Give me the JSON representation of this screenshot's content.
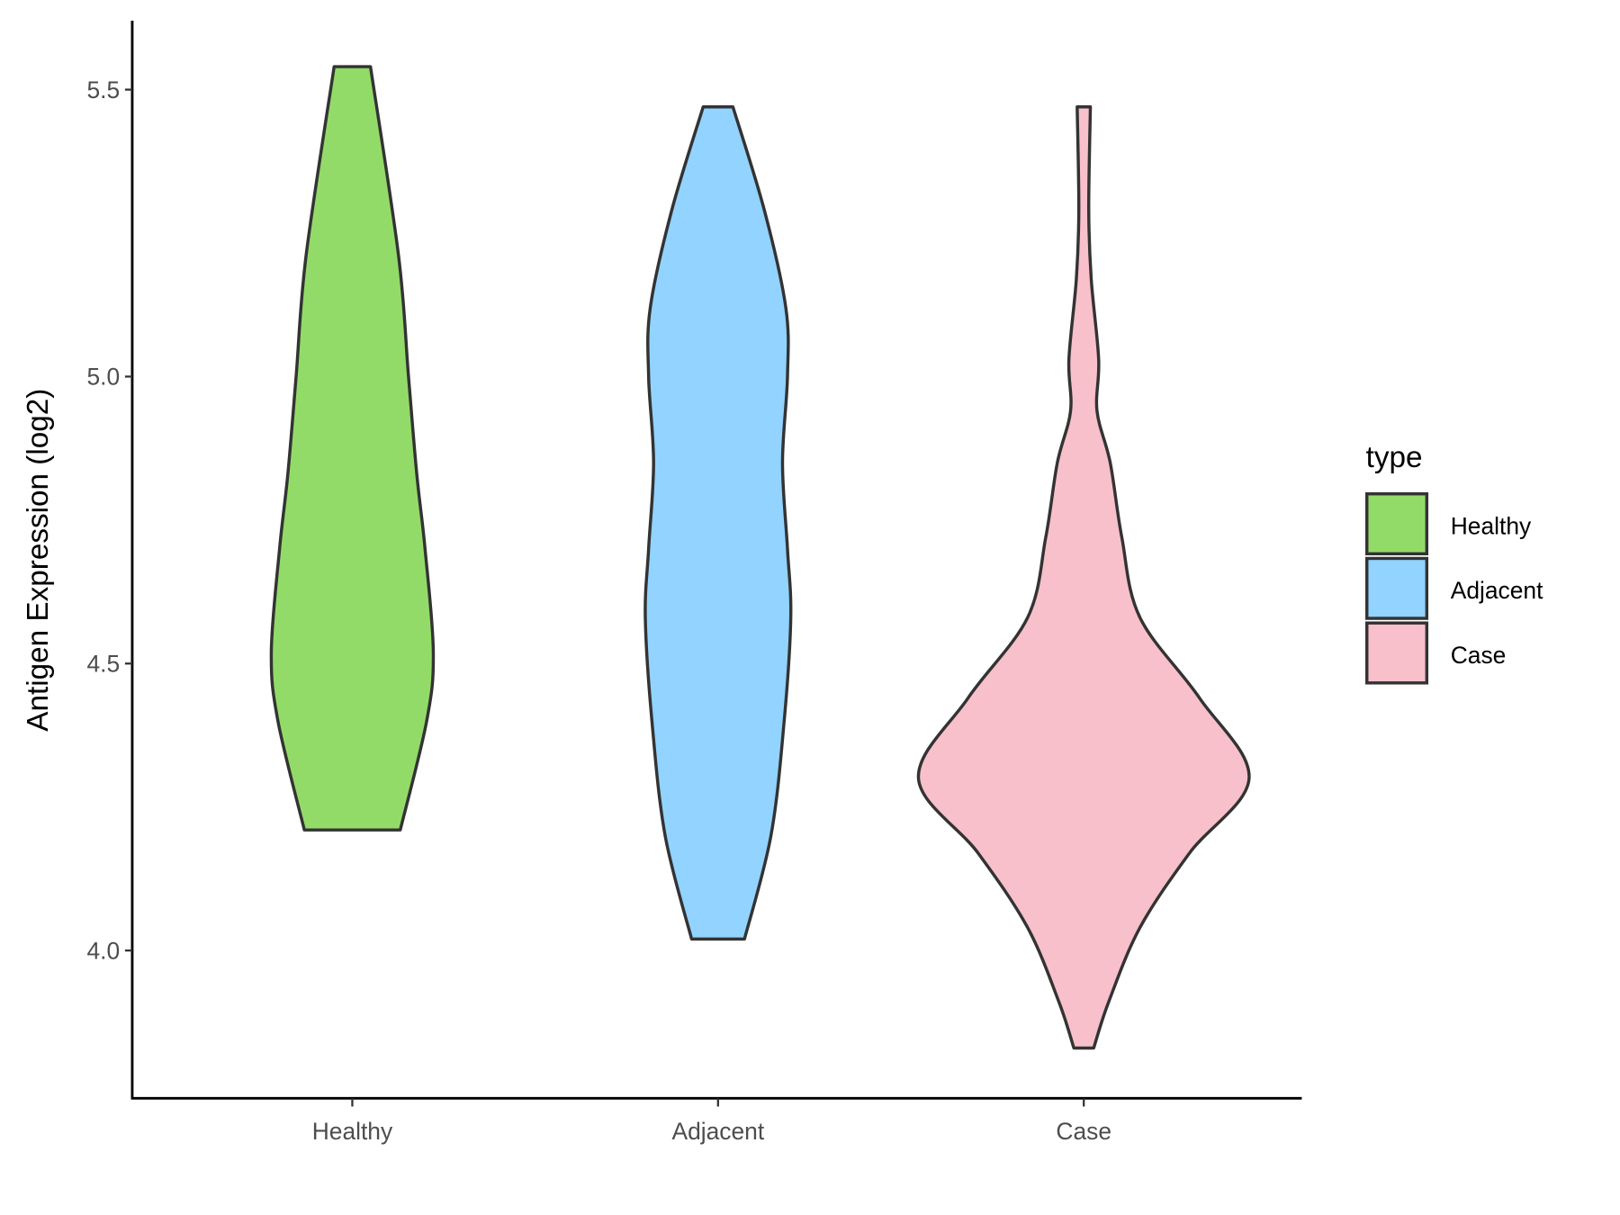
{
  "chart_data": {
    "type": "violin",
    "title": "",
    "xlabel": "",
    "ylabel": "Antigen Expression (log2)",
    "ylim": [
      3.74,
      5.62
    ],
    "yticks": [
      4.0,
      4.5,
      5.0,
      5.5
    ],
    "ytick_labels": [
      "4.0",
      "4.5",
      "5.0",
      "5.5"
    ],
    "categories": [
      "Healthy",
      "Adjacent",
      "Case"
    ],
    "grid": false,
    "legend": {
      "title": "type",
      "position": "right",
      "entries": [
        "Healthy",
        "Adjacent",
        "Case"
      ]
    },
    "series": [
      {
        "name": "Healthy",
        "color": "#93DB69",
        "profile": [
          [
            5.54,
            0.11
          ],
          [
            5.21,
            0.28
          ],
          [
            5.0,
            0.34
          ],
          [
            4.83,
            0.39
          ],
          [
            4.7,
            0.44
          ],
          [
            4.52,
            0.49
          ],
          [
            4.4,
            0.45
          ],
          [
            4.21,
            0.29
          ]
        ]
      },
      {
        "name": "Adjacent",
        "color": "#92D3FF",
        "profile": [
          [
            5.47,
            0.09
          ],
          [
            5.29,
            0.28
          ],
          [
            5.12,
            0.41
          ],
          [
            5.0,
            0.42
          ],
          [
            4.85,
            0.39
          ],
          [
            4.7,
            0.42
          ],
          [
            4.58,
            0.44
          ],
          [
            4.4,
            0.4
          ],
          [
            4.2,
            0.32
          ],
          [
            4.02,
            0.16
          ]
        ]
      },
      {
        "name": "Case",
        "color": "#F7C0CB",
        "profile": [
          [
            5.47,
            0.04
          ],
          [
            5.29,
            0.03
          ],
          [
            5.17,
            0.045
          ],
          [
            5.03,
            0.09
          ],
          [
            4.94,
            0.08
          ],
          [
            4.85,
            0.16
          ],
          [
            4.72,
            0.23
          ],
          [
            4.58,
            0.34
          ],
          [
            4.44,
            0.7
          ],
          [
            4.3,
            1.0
          ],
          [
            4.17,
            0.64
          ],
          [
            4.04,
            0.34
          ],
          [
            3.91,
            0.15
          ],
          [
            3.83,
            0.06
          ]
        ]
      }
    ]
  }
}
